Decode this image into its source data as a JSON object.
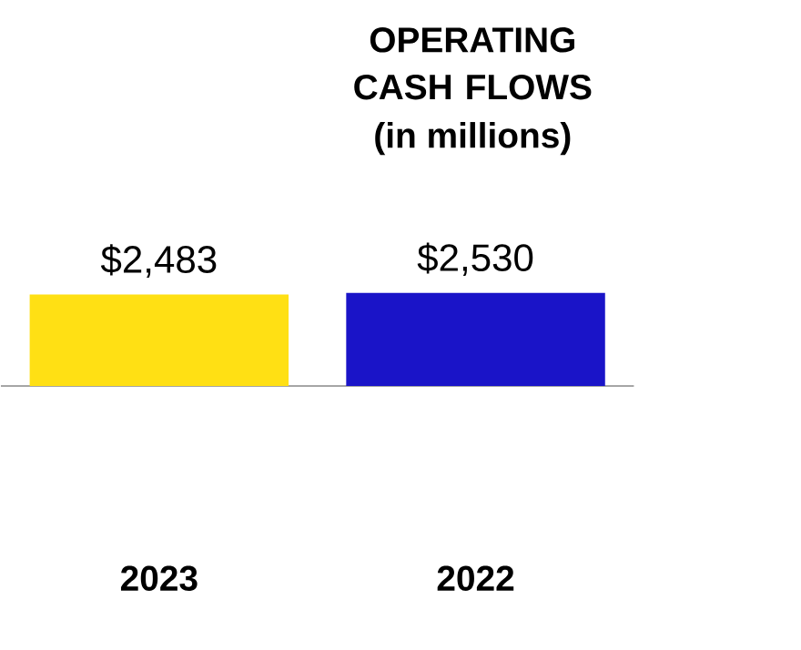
{
  "chart_data": {
    "type": "bar",
    "title": "OPERATING CASH FLOWS",
    "subtitle": "(in millions)",
    "categories": [
      "2023",
      "2022"
    ],
    "values": [
      2483,
      2530
    ],
    "colors": [
      "#ffe014",
      "#1a14c8"
    ],
    "value_labels": [
      "$2,483",
      "$2,530"
    ]
  }
}
